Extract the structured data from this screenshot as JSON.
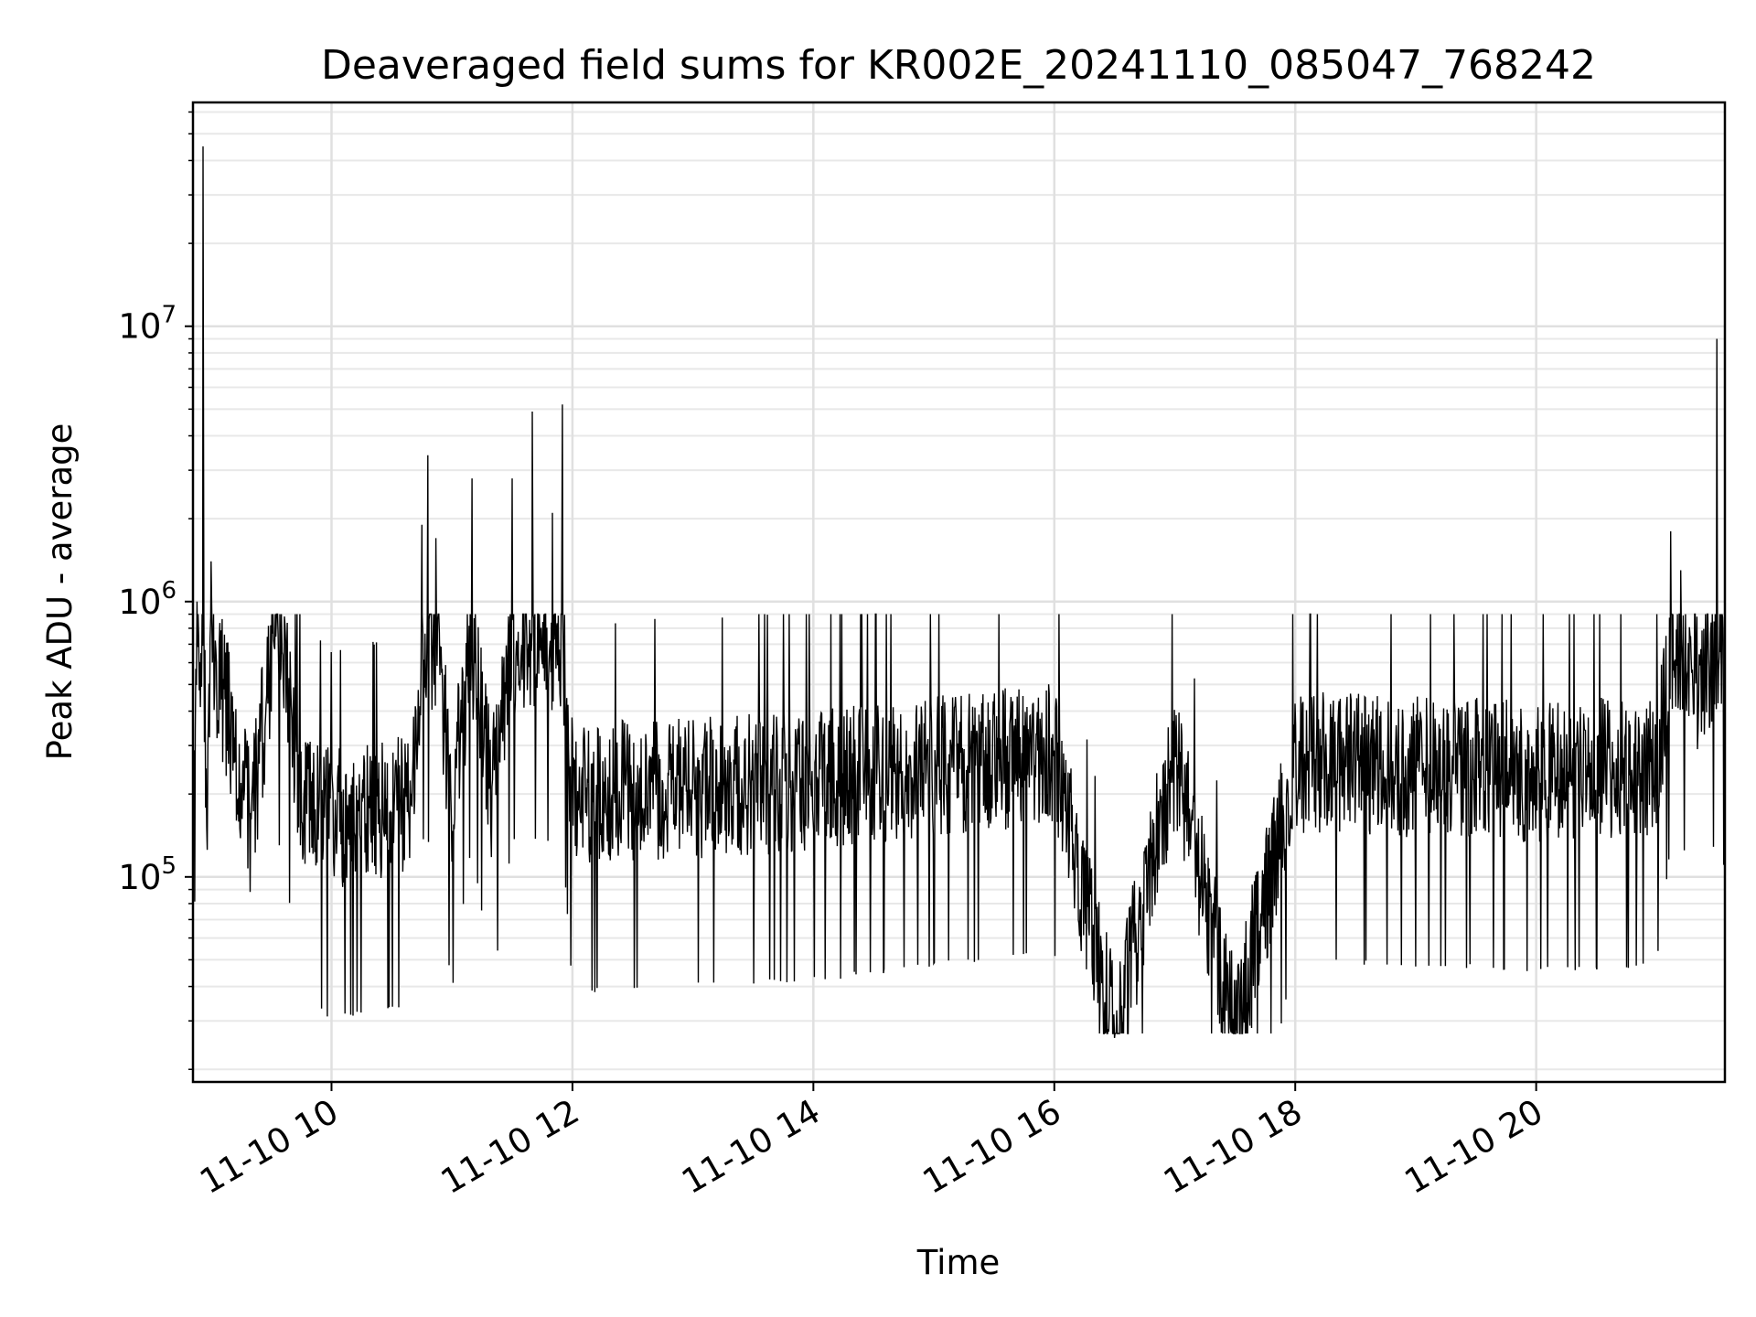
{
  "chart_data": {
    "type": "line",
    "title": "Deaveraged field sums for KR002E_20241110_085047_768242",
    "xlabel": "Time",
    "ylabel": "Peak ADU - average",
    "x_axis": {
      "kind": "datetime",
      "range": [
        "2024-11-10T08:51",
        "2024-11-10T21:34"
      ],
      "ticks": [
        {
          "value": "2024-11-10T10:00",
          "label": "11-10 10"
        },
        {
          "value": "2024-11-10T12:00",
          "label": "11-10 12"
        },
        {
          "value": "2024-11-10T14:00",
          "label": "11-10 14"
        },
        {
          "value": "2024-11-10T16:00",
          "label": "11-10 16"
        },
        {
          "value": "2024-11-10T18:00",
          "label": "11-10 18"
        },
        {
          "value": "2024-11-10T20:00",
          "label": "11-10 20"
        }
      ]
    },
    "y_axis": {
      "scale": "log",
      "range": [
        18000,
        65000000
      ],
      "ticks": [
        {
          "value": 100000,
          "base": "10",
          "exp": "5"
        },
        {
          "value": 1000000,
          "base": "10",
          "exp": "6"
        },
        {
          "value": 10000000,
          "base": "10",
          "exp": "7"
        }
      ]
    },
    "grid": true,
    "series": [
      {
        "color": "#000000",
        "points": [
          [
            "2024-11-10T08:51",
            300000
          ],
          [
            "2024-11-10T08:53",
            1000000
          ],
          [
            "2024-11-10T08:56",
            45000000
          ],
          [
            "2024-11-10T08:58",
            200000
          ],
          [
            "2024-11-10T09:00",
            1400000
          ],
          [
            "2024-11-10T09:10",
            350000
          ],
          [
            "2024-11-10T09:20",
            150000
          ],
          [
            "2024-11-10T09:30",
            630000
          ],
          [
            "2024-11-10T09:35",
            900000
          ],
          [
            "2024-11-10T09:45",
            200000
          ],
          [
            "2024-11-10T10:00",
            160000
          ],
          [
            "2024-11-10T10:20",
            170000
          ],
          [
            "2024-11-10T10:40",
            180000
          ],
          [
            "2024-11-10T10:45",
            1900000
          ],
          [
            "2024-11-10T10:48",
            3400000
          ],
          [
            "2024-11-10T10:52",
            1700000
          ],
          [
            "2024-11-10T11:00",
            200000
          ],
          [
            "2024-11-10T11:10",
            2800000
          ],
          [
            "2024-11-10T11:20",
            200000
          ],
          [
            "2024-11-10T11:30",
            2800000
          ],
          [
            "2024-11-10T11:40",
            4900000
          ],
          [
            "2024-11-10T11:50",
            2100000
          ],
          [
            "2024-11-10T11:55",
            5200000
          ],
          [
            "2024-11-10T12:00",
            200000
          ],
          [
            "2024-11-10T13:00",
            210000
          ],
          [
            "2024-11-10T14:00",
            220000
          ],
          [
            "2024-11-10T15:00",
            250000
          ],
          [
            "2024-11-10T16:00",
            280000
          ],
          [
            "2024-11-10T16:30",
            26000
          ],
          [
            "2024-11-10T17:00",
            270000
          ],
          [
            "2024-11-10T17:30",
            27000
          ],
          [
            "2024-11-10T18:00",
            260000
          ],
          [
            "2024-11-10T19:00",
            250000
          ],
          [
            "2024-11-10T20:00",
            240000
          ],
          [
            "2024-11-10T21:00",
            250000
          ],
          [
            "2024-11-10T21:07",
            1800000
          ],
          [
            "2024-11-10T21:12",
            1300000
          ],
          [
            "2024-11-10T21:20",
            500000
          ],
          [
            "2024-11-10T21:30",
            9000000
          ],
          [
            "2024-11-10T21:34",
            550000
          ]
        ]
      }
    ]
  }
}
